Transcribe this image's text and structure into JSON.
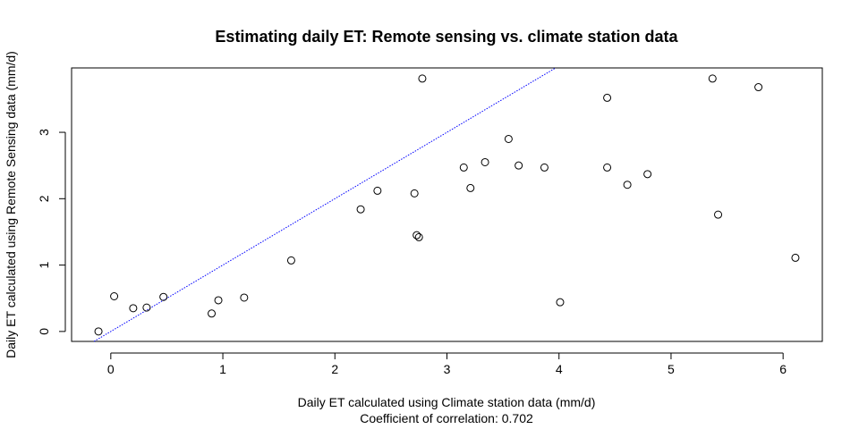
{
  "chart_data": {
    "type": "scatter",
    "title": "Estimating daily ET: Remote sensing vs. climate station data",
    "xlabel": "Daily ET calculated using Climate station data (mm/d)",
    "xlabel_line2": "Coefficient of correlation: 0.702",
    "ylabel": "Daily ET calculated using Remote Sensing data (mm/d)",
    "xlim": [
      -0.35,
      6.35
    ],
    "ylim": [
      -0.15,
      3.97
    ],
    "xticks": [
      0,
      1,
      2,
      3,
      4,
      5,
      6
    ],
    "yticks": [
      0,
      1,
      2,
      3
    ],
    "grid": false,
    "point_color": "#000000",
    "reference_line": {
      "intercept": 0,
      "slope": 1,
      "color": "#0000ff",
      "style": "dotted"
    },
    "points": [
      {
        "x": -0.11,
        "y": 0.0
      },
      {
        "x": 0.03,
        "y": 0.53
      },
      {
        "x": 0.2,
        "y": 0.35
      },
      {
        "x": 0.32,
        "y": 0.36
      },
      {
        "x": 0.47,
        "y": 0.52
      },
      {
        "x": 0.9,
        "y": 0.27
      },
      {
        "x": 0.96,
        "y": 0.47
      },
      {
        "x": 1.19,
        "y": 0.51
      },
      {
        "x": 1.61,
        "y": 1.07
      },
      {
        "x": 2.23,
        "y": 1.84
      },
      {
        "x": 2.38,
        "y": 2.12
      },
      {
        "x": 2.71,
        "y": 2.08
      },
      {
        "x": 2.73,
        "y": 1.45
      },
      {
        "x": 2.75,
        "y": 1.42
      },
      {
        "x": 2.78,
        "y": 3.81
      },
      {
        "x": 3.15,
        "y": 2.47
      },
      {
        "x": 3.21,
        "y": 2.16
      },
      {
        "x": 3.34,
        "y": 2.55
      },
      {
        "x": 3.55,
        "y": 2.9
      },
      {
        "x": 3.64,
        "y": 2.5
      },
      {
        "x": 3.87,
        "y": 2.47
      },
      {
        "x": 4.01,
        "y": 0.44
      },
      {
        "x": 4.43,
        "y": 3.52
      },
      {
        "x": 4.43,
        "y": 2.47
      },
      {
        "x": 4.61,
        "y": 2.21
      },
      {
        "x": 4.79,
        "y": 2.37
      },
      {
        "x": 5.37,
        "y": 3.81
      },
      {
        "x": 5.42,
        "y": 1.76
      },
      {
        "x": 5.78,
        "y": 3.68
      },
      {
        "x": 6.11,
        "y": 1.11
      }
    ]
  }
}
